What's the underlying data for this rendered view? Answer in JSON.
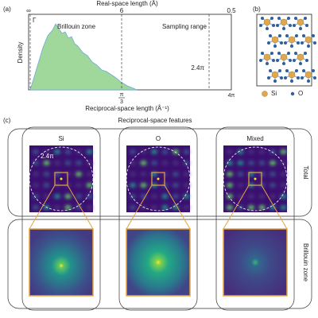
{
  "panel_a": {
    "label": "(a)",
    "top_axis_label": "Real-space length (Å)",
    "top_ticks": [
      "∞",
      "6",
      "0.5"
    ],
    "y_axis_label": "Density",
    "x_axis_label": "Reciprocal-space length (Å⁻¹)",
    "bottom_tick_numerator": "π",
    "bottom_tick_denominator": "3",
    "bottom_tick_end": "4π",
    "gamma": "Γ",
    "region_1": "Brillouin zone",
    "region_2": "Sampling range",
    "cutoff": "2.4π"
  },
  "panel_b": {
    "label": "(b)",
    "legend": [
      "Si",
      "O"
    ]
  },
  "panel_c": {
    "label": "(c)",
    "title": "Reciprocal-space features",
    "columns": [
      "Si",
      "O",
      "Mixed"
    ],
    "rows": [
      "Total",
      "Brillouin zone"
    ],
    "circle_label": "2.4π"
  }
}
